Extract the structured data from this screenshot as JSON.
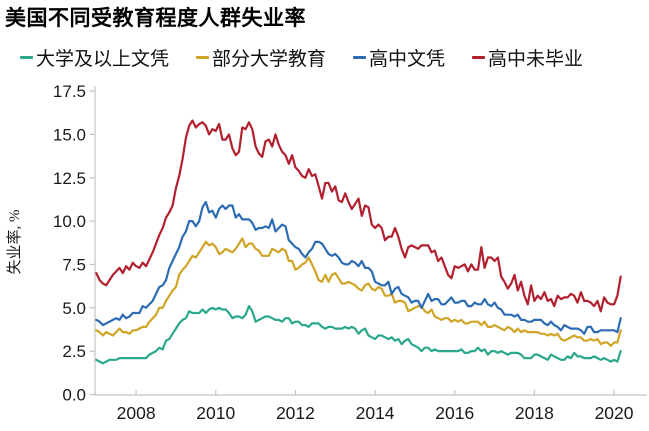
{
  "title": "美国不同受教育程度人群失业率",
  "legend": [
    {
      "label": "大学及以上文凭",
      "color": "#2ba78c"
    },
    {
      "label": "部分大学教育",
      "color": "#d0a426"
    },
    {
      "label": "高中文凭",
      "color": "#2c6cb3"
    },
    {
      "label": "高中未毕业",
      "color": "#b2202f"
    }
  ],
  "colors": {
    "axis": "#c4c4c4",
    "tick_text": "#1a1a1a",
    "background": "#ffffff"
  },
  "chart_data": {
    "type": "line",
    "title": "美国不同受教育程度人群失业率",
    "xlabel": "",
    "ylabel": "失业率, %",
    "x_start": "2007-01",
    "x_end": "2020-03",
    "x_frequency": "monthly",
    "xticks": [
      2008,
      2010,
      2012,
      2014,
      2016,
      2018,
      2020
    ],
    "yticks": [
      0.0,
      2.5,
      5.0,
      7.5,
      10.0,
      12.5,
      15.0,
      17.5
    ],
    "ylim": [
      0,
      17.5
    ],
    "grid": false,
    "legend_position": "top",
    "series": [
      {
        "name": "大学及以上文凭",
        "color": "#2ba78c",
        "values": [
          2.0,
          1.9,
          1.8,
          1.9,
          2.0,
          2.0,
          2.0,
          2.1,
          2.1,
          2.1,
          2.1,
          2.1,
          2.1,
          2.1,
          2.1,
          2.1,
          2.3,
          2.4,
          2.5,
          2.7,
          2.6,
          3.1,
          3.2,
          3.5,
          3.8,
          4.1,
          4.3,
          4.4,
          4.8,
          4.7,
          4.7,
          4.7,
          4.9,
          4.7,
          4.9,
          5.0,
          4.9,
          5.0,
          4.9,
          4.9,
          4.7,
          4.4,
          4.5,
          4.5,
          4.4,
          4.6,
          5.1,
          4.8,
          4.2,
          4.3,
          4.4,
          4.5,
          4.5,
          4.4,
          4.3,
          4.3,
          4.2,
          4.4,
          4.4,
          4.1,
          4.2,
          4.2,
          4.0,
          4.0,
          3.9,
          4.1,
          4.1,
          4.1,
          3.9,
          3.8,
          3.9,
          3.9,
          3.8,
          3.8,
          3.8,
          3.9,
          3.8,
          3.9,
          3.8,
          3.5,
          3.7,
          3.8,
          3.4,
          3.3,
          3.2,
          3.4,
          3.4,
          3.3,
          3.2,
          3.3,
          3.1,
          3.2,
          2.9,
          3.1,
          3.2,
          2.9,
          2.8,
          2.7,
          2.5,
          2.7,
          2.7,
          2.5,
          2.6,
          2.5,
          2.5,
          2.5,
          2.5,
          2.5,
          2.5,
          2.5,
          2.6,
          2.4,
          2.4,
          2.5,
          2.5,
          2.7,
          2.5,
          2.6,
          2.3,
          2.5,
          2.5,
          2.4,
          2.5,
          2.4,
          2.3,
          2.4,
          2.4,
          2.4,
          2.3,
          2.1,
          2.1,
          2.1,
          2.3,
          2.3,
          2.2,
          2.1,
          2.0,
          2.3,
          2.2,
          2.1,
          2.0,
          2.0,
          2.2,
          2.1,
          2.4,
          2.2,
          2.2,
          2.1,
          2.1,
          2.1,
          2.2,
          2.1,
          2.0,
          2.1,
          2.0,
          1.9,
          2.0,
          1.9,
          2.5
        ]
      },
      {
        "name": "部分大学教育",
        "color": "#d0a426",
        "values": [
          3.7,
          3.6,
          3.4,
          3.6,
          3.5,
          3.4,
          3.6,
          3.8,
          3.6,
          3.6,
          3.5,
          3.7,
          3.7,
          3.8,
          3.9,
          3.9,
          4.2,
          4.4,
          4.6,
          5.0,
          5.0,
          5.4,
          5.7,
          6.0,
          6.2,
          6.9,
          7.2,
          7.4,
          7.7,
          8.0,
          7.9,
          8.2,
          8.5,
          8.8,
          8.6,
          8.7,
          8.5,
          8.1,
          8.2,
          8.4,
          8.3,
          8.2,
          8.4,
          8.7,
          9.0,
          8.5,
          8.7,
          8.7,
          8.4,
          8.3,
          8.0,
          8.0,
          8.0,
          8.4,
          8.3,
          8.2,
          8.4,
          8.3,
          7.7,
          7.7,
          7.2,
          7.3,
          7.5,
          7.6,
          7.9,
          7.5,
          7.1,
          6.6,
          6.5,
          6.9,
          6.5,
          6.9,
          7.0,
          6.7,
          6.4,
          6.4,
          6.5,
          6.4,
          6.3,
          6.1,
          6.0,
          6.3,
          6.4,
          6.1,
          6.0,
          6.2,
          6.1,
          5.7,
          5.7,
          5.8,
          5.3,
          5.4,
          5.4,
          5.3,
          4.8,
          4.9,
          5.0,
          5.1,
          5.1,
          4.8,
          4.7,
          4.9,
          4.5,
          4.4,
          4.3,
          4.4,
          4.4,
          4.2,
          4.3,
          4.2,
          4.3,
          4.1,
          4.1,
          4.2,
          4.2,
          4.2,
          4.0,
          4.2,
          3.9,
          3.9,
          4.0,
          3.9,
          3.8,
          3.7,
          3.9,
          3.8,
          3.6,
          3.8,
          3.6,
          3.7,
          3.6,
          3.6,
          3.6,
          3.6,
          3.5,
          3.5,
          3.4,
          3.5,
          3.4,
          3.5,
          3.2,
          3.1,
          3.2,
          3.3,
          3.4,
          3.3,
          3.3,
          3.1,
          3.1,
          3.2,
          3.1,
          3.2,
          2.9,
          3.0,
          3.0,
          2.8,
          3.0,
          3.0,
          3.7
        ]
      },
      {
        "name": "高中文凭",
        "color": "#2c6cb3",
        "values": [
          4.3,
          4.2,
          4.0,
          4.1,
          4.2,
          4.3,
          4.4,
          4.3,
          4.6,
          4.4,
          4.5,
          4.7,
          4.7,
          4.7,
          5.1,
          5.0,
          5.2,
          5.4,
          5.8,
          6.2,
          6.3,
          6.6,
          7.3,
          7.7,
          8.1,
          8.5,
          9.1,
          9.4,
          10.0,
          10.0,
          9.7,
          10.0,
          10.8,
          11.1,
          10.5,
          10.6,
          10.2,
          10.7,
          10.9,
          10.7,
          10.9,
          10.9,
          10.2,
          10.4,
          10.1,
          10.1,
          10.1,
          9.9,
          9.5,
          9.6,
          9.6,
          9.7,
          9.6,
          10.1,
          9.4,
          9.6,
          9.8,
          9.7,
          8.9,
          8.7,
          8.5,
          8.4,
          8.1,
          7.9,
          8.2,
          8.4,
          8.8,
          8.8,
          8.7,
          8.4,
          8.1,
          8.0,
          8.1,
          7.9,
          7.6,
          7.5,
          7.5,
          7.7,
          7.6,
          7.4,
          7.7,
          7.3,
          7.3,
          7.1,
          6.5,
          6.4,
          6.3,
          6.3,
          6.5,
          5.8,
          6.1,
          6.2,
          5.8,
          5.7,
          5.6,
          5.3,
          5.4,
          5.4,
          5.0,
          5.4,
          5.8,
          5.4,
          5.5,
          5.5,
          5.2,
          5.2,
          5.4,
          5.6,
          5.3,
          5.3,
          5.4,
          5.4,
          5.1,
          5.1,
          5.3,
          5.2,
          5.2,
          5.5,
          5.2,
          5.1,
          5.3,
          5.0,
          4.9,
          4.6,
          4.6,
          4.6,
          4.5,
          4.6,
          4.3,
          4.3,
          4.2,
          4.2,
          4.3,
          4.3,
          4.3,
          4.1,
          4.0,
          4.2,
          4.0,
          3.9,
          3.7,
          4.0,
          3.9,
          3.8,
          3.8,
          3.8,
          3.7,
          3.5,
          3.9,
          3.9,
          3.6,
          3.6,
          3.7,
          3.7,
          3.7,
          3.7,
          3.7,
          3.6,
          4.4
        ]
      },
      {
        "name": "高中未毕业",
        "color": "#b2202f",
        "values": [
          7.0,
          6.6,
          6.4,
          6.3,
          6.6,
          6.9,
          7.1,
          7.3,
          7.0,
          7.4,
          7.2,
          7.6,
          7.4,
          7.3,
          7.6,
          7.4,
          7.8,
          8.2,
          8.7,
          9.2,
          9.6,
          10.2,
          10.5,
          10.9,
          11.9,
          12.6,
          13.6,
          14.8,
          15.5,
          15.8,
          15.4,
          15.6,
          15.7,
          15.5,
          15.0,
          15.3,
          15.2,
          15.6,
          14.7,
          14.7,
          15.0,
          14.2,
          13.8,
          14.0,
          15.4,
          15.3,
          15.7,
          15.3,
          14.3,
          13.9,
          13.7,
          14.6,
          14.7,
          14.3,
          15.0,
          14.4,
          14.0,
          13.8,
          13.3,
          13.8,
          13.1,
          12.9,
          12.6,
          12.5,
          13.0,
          12.6,
          12.7,
          12.0,
          11.3,
          12.2,
          12.2,
          11.7,
          12.0,
          11.2,
          11.1,
          11.6,
          11.1,
          10.7,
          11.0,
          11.3,
          10.3,
          10.9,
          10.8,
          9.8,
          9.6,
          9.8,
          9.6,
          8.9,
          9.1,
          9.1,
          9.6,
          9.1,
          8.4,
          7.9,
          8.5,
          8.6,
          8.5,
          8.4,
          8.6,
          8.6,
          8.6,
          8.2,
          8.3,
          7.7,
          7.9,
          7.4,
          6.9,
          6.7,
          7.4,
          7.3,
          7.4,
          7.5,
          7.1,
          7.5,
          7.2,
          7.2,
          8.5,
          7.3,
          7.9,
          7.9,
          7.7,
          7.9,
          6.8,
          6.5,
          6.1,
          6.4,
          6.9,
          6.0,
          6.5,
          5.7,
          5.2,
          6.3,
          5.4,
          5.7,
          5.5,
          5.9,
          5.4,
          5.5,
          5.1,
          5.7,
          5.5,
          5.6,
          5.6,
          5.8,
          5.7,
          5.3,
          5.9,
          5.4,
          5.4,
          5.3,
          5.1,
          5.4,
          4.8,
          5.6,
          5.3,
          5.2,
          5.2,
          5.7,
          6.8
        ]
      }
    ]
  }
}
